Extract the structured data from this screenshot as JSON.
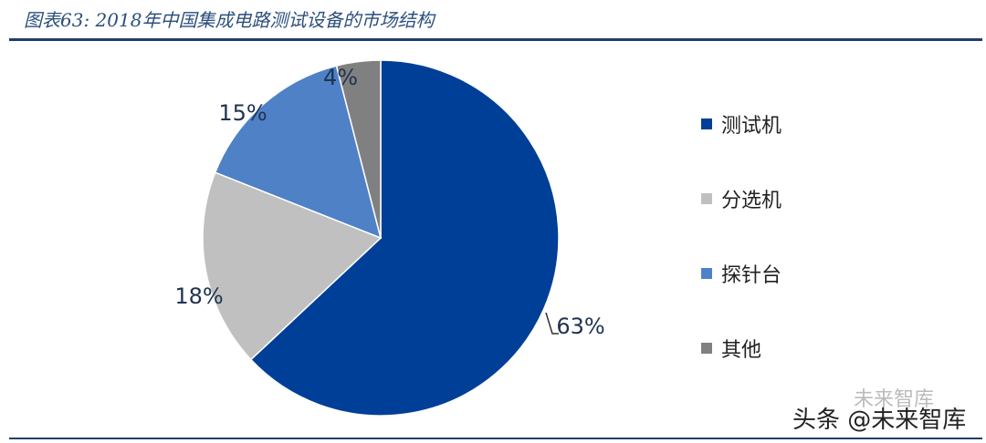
{
  "title": "图表63: 2018年中国集成电路测试设备的市场结构",
  "watermark": {
    "faint": "未来智库",
    "main": "头条 @未来智库"
  },
  "chart_data": {
    "type": "pie",
    "title": "图表63: 2018年中国集成电路测试设备的市场结构",
    "start": "top",
    "direction": "clockwise",
    "categories": [
      "测试机",
      "分选机",
      "探针台",
      "其他"
    ],
    "values": [
      63,
      18,
      15,
      4
    ],
    "labels": [
      "63%",
      "18%",
      "15%",
      "4%"
    ],
    "colors": [
      "#003f98",
      "#c0c0c0",
      "#4f81c7",
      "#808080"
    ],
    "legend": "right"
  }
}
